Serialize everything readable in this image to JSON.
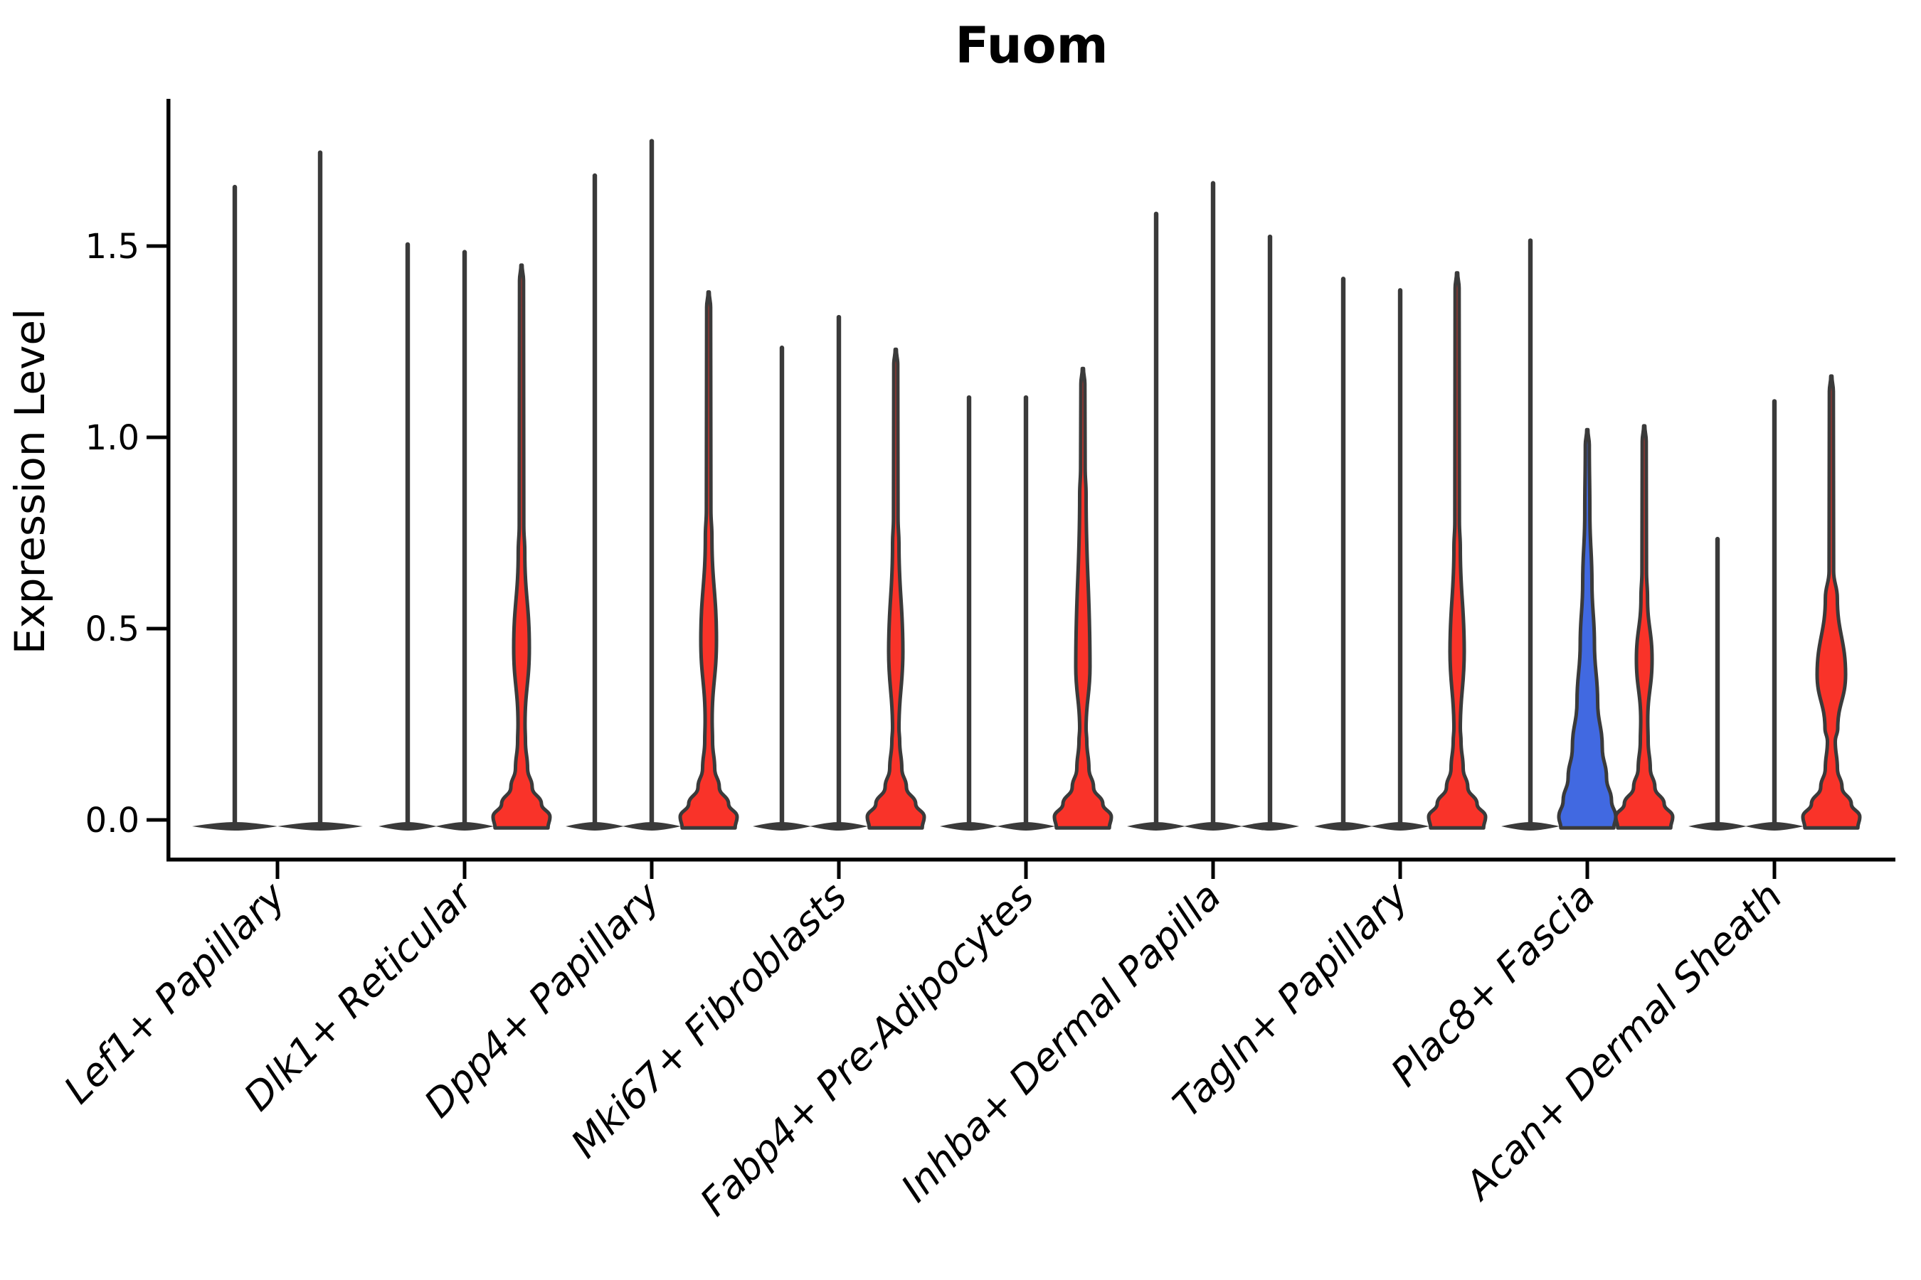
{
  "chart_data": {
    "type": "violin",
    "title": "Fuom",
    "ylabel": "Expression Level",
    "xlabel": "",
    "ytick_labels": [
      "0.0",
      "0.5",
      "1.0",
      "1.5"
    ],
    "ytick_values": [
      0.0,
      0.5,
      1.0,
      1.5
    ],
    "ylim": [
      -0.06,
      1.88
    ],
    "grid": false,
    "legend": "none",
    "colors": {
      "fill_red": "#F93329",
      "fill_blue": "#4169E1",
      "violin_outline": "#3A3A3A",
      "axis": "#000000",
      "background": "#FFFFFF"
    },
    "categories": [
      "Lef1+ Papillary",
      "Dlk1+ Reticular",
      "Dpp4+ Papillary",
      "Mki67+ Fibroblasts",
      "Fabp4+ Pre-Adipocytes",
      "Inhba+ Dermal Papilla",
      "Tagln+ Papillary",
      "Plac8+ Fascia",
      "Acan+ Dermal Sheath"
    ],
    "groups": [
      {
        "category": "Lef1+ Papillary",
        "violins": [
          {
            "slot": -0.75,
            "style": "thin",
            "max": 1.66,
            "base_halfwidth": 60
          },
          {
            "slot": 0.75,
            "style": "thin",
            "max": 1.75,
            "base_halfwidth": 60
          }
        ]
      },
      {
        "category": "Dlk1+ Reticular",
        "violins": [
          {
            "slot": -1,
            "style": "thin",
            "max": 1.51
          },
          {
            "slot": 0,
            "style": "thin",
            "max": 1.49
          },
          {
            "slot": 1,
            "style": "red_spindle",
            "max": 1.45,
            "spindle": {
              "bottom": 0.25,
              "peak": 0.45,
              "top": 0.7,
              "peak_halfwidth": 11
            }
          }
        ]
      },
      {
        "category": "Dpp4+ Papillary",
        "violins": [
          {
            "slot": -1,
            "style": "thin",
            "max": 1.69
          },
          {
            "slot": 0,
            "style": "thin",
            "max": 1.78
          },
          {
            "slot": 1,
            "style": "red_spindle",
            "max": 1.38,
            "spindle": {
              "bottom": 0.26,
              "peak": 0.47,
              "top": 0.74,
              "peak_halfwidth": 11
            }
          }
        ]
      },
      {
        "category": "Mki67+ Fibroblasts",
        "violins": [
          {
            "slot": -1,
            "style": "thin",
            "max": 1.24
          },
          {
            "slot": 0,
            "style": "thin",
            "max": 1.32
          },
          {
            "slot": 1,
            "style": "red_spindle",
            "max": 1.23,
            "spindle": {
              "bottom": 0.24,
              "peak": 0.44,
              "top": 0.72,
              "peak_halfwidth": 10
            }
          }
        ]
      },
      {
        "category": "Fabp4+ Pre-Adipocytes",
        "violins": [
          {
            "slot": -1,
            "style": "thin",
            "max": 1.11
          },
          {
            "slot": 0,
            "style": "thin",
            "max": 1.11
          },
          {
            "slot": 1,
            "style": "red_spindle",
            "max": 1.18,
            "spindle": {
              "bottom": 0.24,
              "peak": 0.4,
              "top": 0.85,
              "peak_halfwidth": 10
            }
          }
        ]
      },
      {
        "category": "Inhba+ Dermal Papilla",
        "violins": [
          {
            "slot": -1,
            "style": "thin",
            "max": 1.59
          },
          {
            "slot": 0,
            "style": "thin",
            "max": 1.67
          },
          {
            "slot": 1,
            "style": "thin",
            "max": 1.53
          }
        ]
      },
      {
        "category": "Tagln+ Papillary",
        "violins": [
          {
            "slot": -1,
            "style": "thin",
            "max": 1.42
          },
          {
            "slot": 0,
            "style": "thin",
            "max": 1.39
          },
          {
            "slot": 1,
            "style": "red_spindle",
            "max": 1.43,
            "spindle": {
              "bottom": 0.24,
              "peak": 0.44,
              "top": 0.71,
              "peak_halfwidth": 10
            }
          }
        ]
      },
      {
        "category": "Plac8+ Fascia",
        "violins": [
          {
            "slot": -1,
            "style": "thin",
            "max": 1.52
          },
          {
            "slot": 0,
            "style": "blue_taper",
            "max": 1.02
          },
          {
            "slot": 1,
            "style": "red_spindle",
            "max": 1.03,
            "spindle": {
              "bottom": 0.26,
              "peak": 0.42,
              "top": 0.58,
              "peak_halfwidth": 11
            }
          }
        ]
      },
      {
        "category": "Acan+ Dermal Sheath",
        "violins": [
          {
            "slot": -1,
            "style": "thin",
            "max": 0.74
          },
          {
            "slot": 0,
            "style": "thin",
            "max": 1.1
          },
          {
            "slot": 1,
            "style": "red_spindle",
            "max": 1.16,
            "spindle": {
              "bottom": 0.24,
              "peak": 0.38,
              "top": 0.58,
              "peak_halfwidth": 20
            }
          }
        ]
      }
    ]
  }
}
